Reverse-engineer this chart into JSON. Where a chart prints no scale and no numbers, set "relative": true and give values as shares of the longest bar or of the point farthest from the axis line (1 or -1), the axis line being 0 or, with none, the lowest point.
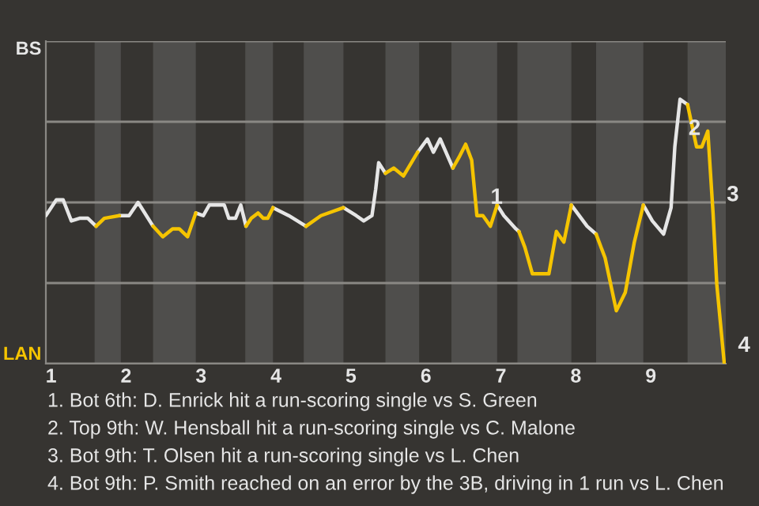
{
  "chart_data": {
    "type": "line",
    "relative": true,
    "x": [
      0.93,
      1.07,
      1.16,
      1.27,
      1.38,
      1.49,
      1.6,
      1.71,
      1.91,
      2.04,
      2.16,
      2.36,
      2.49,
      2.62,
      2.71,
      2.82,
      2.93,
      3.03,
      3.11,
      3.31,
      3.37,
      3.46,
      3.53,
      3.6,
      3.67,
      3.76,
      3.83,
      3.89,
      3.96,
      4.17,
      4.4,
      4.6,
      4.9,
      5.07,
      5.17,
      5.28,
      5.33,
      5.37,
      5.46,
      5.57,
      5.7,
      5.89,
      6.02,
      6.1,
      6.19,
      6.36,
      6.44,
      6.53,
      6.61,
      6.68,
      6.76,
      6.86,
      6.95,
      7.04,
      7.2,
      7.24,
      7.32,
      7.42,
      7.64,
      7.74,
      7.84,
      7.94,
      8.15,
      8.27,
      8.39,
      8.54,
      8.66,
      8.78,
      8.9,
      9.02,
      9.17,
      9.27,
      9.32,
      9.39,
      9.49,
      9.61,
      9.68,
      9.76,
      9.83,
      9.88,
      9.98
    ],
    "series": [
      {
        "name": "BS",
        "color": "#e6e6e6",
        "values": [
          0.56,
          0.62,
          0.62,
          0.54,
          0.55,
          0.55,
          0.52,
          null,
          0.56,
          0.56,
          0.61,
          0.52,
          null,
          null,
          null,
          null,
          0.57,
          0.56,
          0.6,
          0.6,
          0.55,
          0.55,
          0.6,
          0.52,
          null,
          null,
          null,
          null,
          0.59,
          0.56,
          0.52,
          null,
          0.59,
          0.56,
          0.54,
          0.56,
          0.66,
          0.76,
          0.72,
          null,
          null,
          0.8,
          0.85,
          0.8,
          0.85,
          0.74,
          null,
          null,
          null,
          null,
          null,
          null,
          0.6,
          0.56,
          0.51,
          0.5,
          null,
          null,
          null,
          null,
          null,
          0.6,
          0.52,
          0.49,
          null,
          null,
          null,
          null,
          0.6,
          0.54,
          0.49,
          0.59,
          0.82,
          1,
          0.98,
          null,
          null,
          null,
          null,
          null,
          null
        ]
      },
      {
        "name": "LAN",
        "color": "#f5c400",
        "values": [
          null,
          null,
          null,
          null,
          null,
          null,
          0.52,
          0.55,
          0.56,
          null,
          null,
          0.52,
          0.48,
          0.51,
          0.51,
          0.48,
          0.57,
          null,
          null,
          null,
          null,
          null,
          null,
          0.52,
          0.55,
          0.57,
          0.55,
          0.55,
          0.59,
          null,
          0.52,
          0.56,
          0.59,
          null,
          null,
          null,
          null,
          null,
          0.72,
          0.74,
          0.71,
          0.8,
          null,
          null,
          null,
          0.74,
          0.78,
          0.83,
          0.77,
          0.56,
          0.56,
          0.52,
          0.6,
          null,
          null,
          0.5,
          0.44,
          0.34,
          0.34,
          0.5,
          0.46,
          0.6,
          null,
          0.49,
          0.4,
          0.2,
          0.27,
          0.46,
          0.6,
          null,
          null,
          null,
          null,
          null,
          0.98,
          0.82,
          0.82,
          0.88,
          0.57,
          0.3,
          0
        ]
      }
    ],
    "xlim": [
      0.93,
      10
    ],
    "xticks": [
      1,
      2,
      3,
      4,
      5,
      6,
      7,
      8,
      9
    ],
    "grid": "y",
    "bands": [
      {
        "axis": "x",
        "from": 1.58,
        "to": 1.93,
        "color": "#4f4e4c"
      },
      {
        "axis": "x",
        "from": 2.36,
        "to": 2.93,
        "color": "#4f4e4c"
      },
      {
        "axis": "x",
        "from": 3.59,
        "to": 3.96,
        "color": "#4f4e4c"
      },
      {
        "axis": "x",
        "from": 4.37,
        "to": 4.9,
        "color": "#4f4e4c"
      },
      {
        "axis": "x",
        "from": 5.46,
        "to": 5.91,
        "color": "#4f4e4c"
      },
      {
        "axis": "x",
        "from": 6.34,
        "to": 6.95,
        "color": "#4f4e4c"
      },
      {
        "axis": "x",
        "from": 7.22,
        "to": 7.94,
        "color": "#4f4e4c"
      },
      {
        "axis": "x",
        "from": 8.27,
        "to": 8.9,
        "color": "#4f4e4c"
      },
      {
        "axis": "x",
        "from": 9.49,
        "to": 10,
        "color": "#4f4e4c"
      }
    ],
    "annotations": [
      {
        "text": "1",
        "x": 6.68,
        "y": 0.56
      },
      {
        "text": "2",
        "x": 9.32,
        "y": 0.82
      },
      {
        "text": "3",
        "x": 9.83,
        "y": 0.57
      },
      {
        "text": "4",
        "x": 9.98,
        "y": 0
      },
      "1. Bot 6th: D. Enrick hit a run-scoring single vs S. Green",
      "2. Top 9th: W. Hensball hit a run-scoring single vs C. Malone",
      "3. Bot 9th: T. Olsen hit a run-scoring single vs L. Chen",
      "4. Bot 9th: P. Smith reached on an error by the 3B, driving in 1 run vs L. Chen"
    ],
    "line_style": "solid",
    "marker": "none",
    "legend": false
  }
}
